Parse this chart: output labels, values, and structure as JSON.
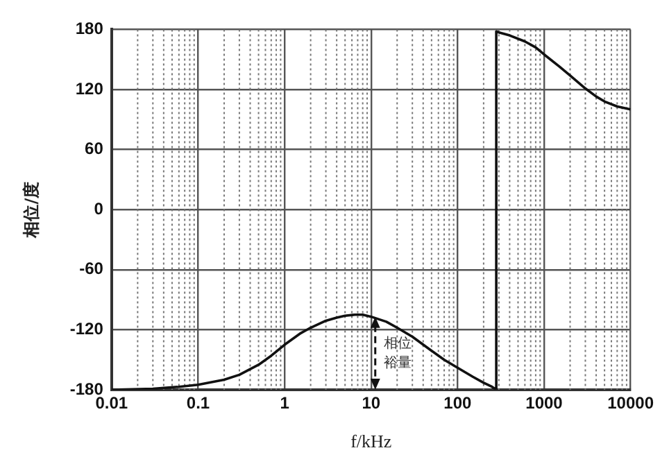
{
  "chart_data": {
    "type": "line",
    "xlabel": "f/kHz",
    "ylabel": "相位/度",
    "log": "x",
    "grid": true,
    "marker": "none",
    "line_style": "solid",
    "xlim": [
      0.01,
      10000
    ],
    "xticks": [
      0.01,
      0.1,
      1,
      10,
      100,
      1000,
      10000
    ],
    "ylim": [
      -180,
      180
    ],
    "yticks": [
      -180,
      -120,
      -60,
      0,
      60,
      120,
      180
    ],
    "annotations": [
      {
        "text": "相位裕量",
        "x": 10,
        "y": -107
      }
    ],
    "series": [
      {
        "color": "#111111",
        "x": [
          0.01,
          0.03,
          0.06,
          0.1,
          0.2,
          0.3,
          0.5,
          0.7,
          1,
          1.5,
          2,
          3,
          4,
          5,
          6.5,
          8,
          10,
          15,
          20,
          30,
          50,
          70,
          100,
          150,
          200,
          250,
          280,
          280,
          300,
          400,
          600,
          800,
          1000,
          1500,
          2000,
          3000,
          4000,
          5000,
          7000,
          10000
        ],
        "values": [
          -180,
          -179,
          -177,
          -175,
          -170,
          -165,
          -155,
          -146,
          -135,
          -124,
          -118,
          -111,
          -108,
          -106,
          -105,
          -105,
          -107,
          -112,
          -118,
          -127,
          -141,
          -150,
          -158,
          -167,
          -173,
          -177,
          -180,
          178,
          177,
          174,
          168,
          162,
          155,
          143,
          134,
          121,
          113,
          108,
          103,
          100
        ]
      }
    ]
  }
}
